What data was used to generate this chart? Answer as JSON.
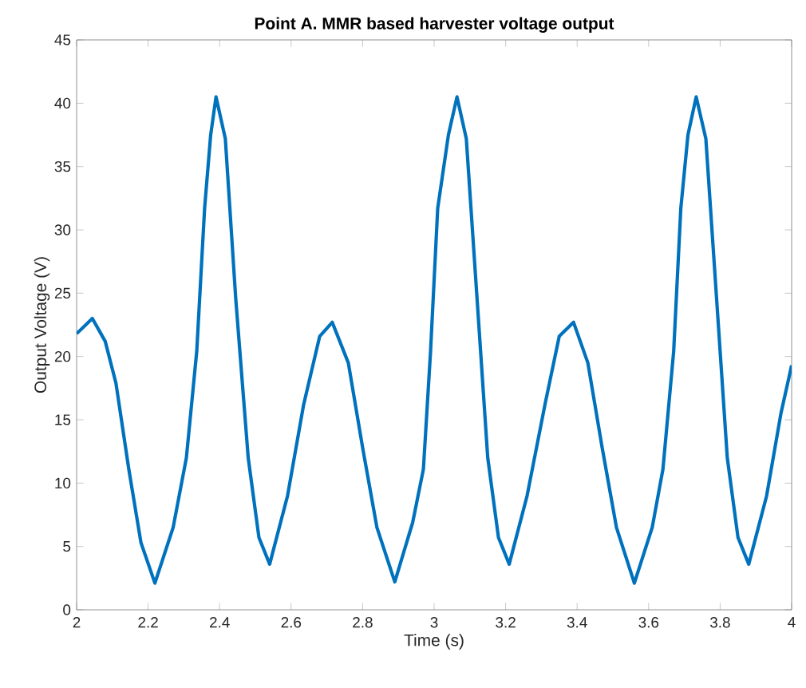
{
  "chart_data": {
    "type": "line",
    "title": "Point A. MMR based harvester voltage output",
    "xlabel": "Time (s)",
    "ylabel": "Output Voltage (V)",
    "xlim": [
      2,
      4
    ],
    "ylim": [
      0,
      45
    ],
    "xticks": [
      2,
      2.2,
      2.4,
      2.6,
      2.8,
      3,
      3.2,
      3.4,
      3.6,
      3.8,
      4
    ],
    "yticks": [
      0,
      5,
      10,
      15,
      20,
      25,
      30,
      35,
      40,
      45
    ],
    "grid": false,
    "marker": "none",
    "line_style": "solid",
    "series": [
      {
        "color": "#0072bd",
        "x": [
          2.0,
          2.044,
          2.08,
          2.11,
          2.146,
          2.18,
          2.219,
          2.27,
          2.307,
          2.336,
          2.358,
          2.375,
          2.39,
          2.416,
          2.445,
          2.48,
          2.51,
          2.54,
          2.59,
          2.635,
          2.68,
          2.715,
          2.76,
          2.8,
          2.84,
          2.89,
          2.94,
          2.97,
          2.99,
          3.01,
          3.04,
          3.064,
          3.09,
          3.12,
          3.15,
          3.18,
          3.21,
          3.26,
          3.31,
          3.35,
          3.39,
          3.43,
          3.47,
          3.51,
          3.56,
          3.61,
          3.64,
          3.67,
          3.69,
          3.71,
          3.733,
          3.76,
          3.79,
          3.82,
          3.85,
          3.88,
          3.93,
          3.97,
          4.0
        ],
        "values": [
          21.8,
          23.0,
          21.2,
          17.9,
          11.1,
          5.3,
          2.1,
          6.5,
          12.0,
          20.4,
          31.7,
          37.5,
          40.5,
          37.2,
          24.6,
          12.0,
          5.7,
          3.6,
          9.0,
          16.2,
          21.6,
          22.7,
          19.5,
          12.8,
          6.5,
          2.2,
          6.9,
          11.1,
          20.4,
          31.7,
          37.5,
          40.5,
          37.2,
          24.6,
          12.0,
          5.7,
          3.6,
          9.0,
          16.2,
          21.6,
          22.7,
          19.5,
          12.8,
          6.5,
          2.1,
          6.5,
          11.1,
          20.4,
          31.7,
          37.5,
          40.5,
          37.2,
          24.6,
          12.0,
          5.7,
          3.6,
          9.0,
          15.5,
          19.3
        ]
      }
    ]
  }
}
